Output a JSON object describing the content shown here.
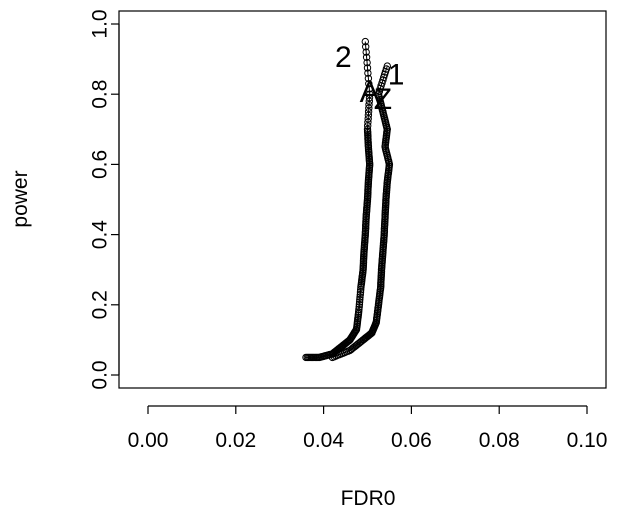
{
  "chart_data": {
    "type": "line",
    "xlabel": "FDR0",
    "ylabel": "power",
    "xlim": [
      0.0,
      0.1
    ],
    "ylim": [
      0.0,
      1.0
    ],
    "x_ticks": [
      "0.00",
      "0.02",
      "0.04",
      "0.06",
      "0.08",
      "0.10"
    ],
    "y_ticks": [
      "0.0",
      "0.2",
      "0.4",
      "0.6",
      "0.8",
      "1.0"
    ],
    "grid": false,
    "legend": "none",
    "marker": "open-circle",
    "series": [
      {
        "name": "1",
        "x": [
          0.042,
          0.046,
          0.049,
          0.051,
          0.052,
          0.0525,
          0.053,
          0.0532,
          0.0535,
          0.0538,
          0.054,
          0.0542,
          0.0545,
          0.055,
          0.054,
          0.0545,
          0.0535,
          0.0525,
          0.0545
        ],
        "y": [
          0.05,
          0.07,
          0.1,
          0.12,
          0.15,
          0.2,
          0.25,
          0.3,
          0.35,
          0.4,
          0.45,
          0.5,
          0.55,
          0.6,
          0.65,
          0.7,
          0.75,
          0.8,
          0.88
        ]
      },
      {
        "name": "2",
        "x": [
          0.036,
          0.039,
          0.042,
          0.044,
          0.046,
          0.0475,
          0.048,
          0.0485,
          0.049,
          0.0492,
          0.0495,
          0.0497,
          0.05,
          0.0502,
          0.0505,
          0.0502,
          0.05,
          0.0505,
          0.0495
        ],
        "y": [
          0.05,
          0.05,
          0.06,
          0.08,
          0.1,
          0.13,
          0.18,
          0.25,
          0.3,
          0.35,
          0.4,
          0.45,
          0.5,
          0.55,
          0.6,
          0.65,
          0.7,
          0.8,
          0.95
        ]
      }
    ],
    "annotations": [
      {
        "text": "1",
        "x": 0.0565,
        "y": 0.855
      },
      {
        "text": "2",
        "x": 0.0445,
        "y": 0.905
      },
      {
        "text": "A",
        "x": 0.0505,
        "y": 0.805
      },
      {
        "text": "Z",
        "x": 0.0535,
        "y": 0.785
      }
    ]
  }
}
